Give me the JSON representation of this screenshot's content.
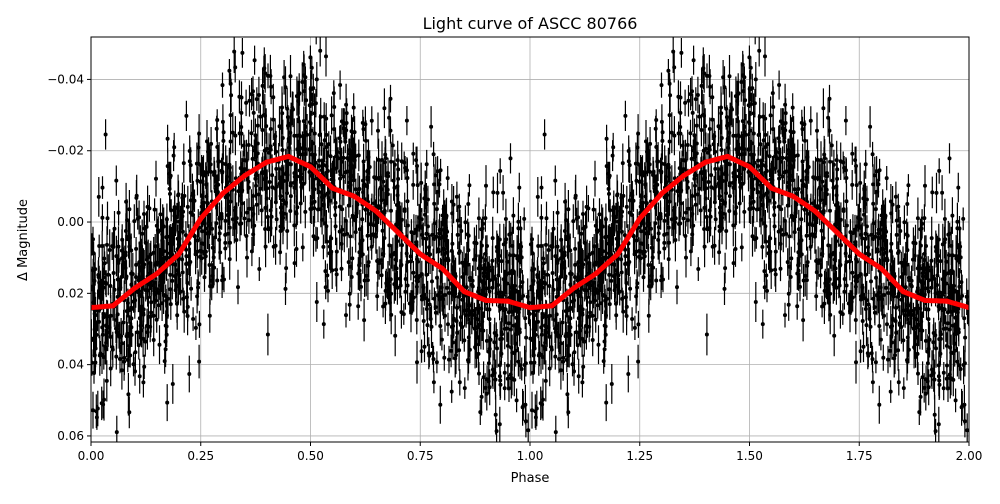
{
  "chart_data": {
    "type": "scatter",
    "title": "Light curve of ASCC 80766",
    "xlabel": "Phase",
    "ylabel": "Δ Magnitude",
    "xlim": [
      0.0,
      2.0
    ],
    "ylim": [
      0.0617,
      -0.0519
    ],
    "y_inverted": true,
    "grid": true,
    "xticks": [
      "0.00",
      "0.25",
      "0.50",
      "0.75",
      "1.00",
      "1.25",
      "1.50",
      "1.75",
      "2.00"
    ],
    "xtick_values": [
      0,
      0.25,
      0.5,
      0.75,
      1.0,
      1.25,
      1.5,
      1.75,
      2.0
    ],
    "yticks": [
      "−0.04",
      "−0.02",
      "0.00",
      "0.02",
      "0.04",
      "0.06"
    ],
    "ytick_values": [
      -0.04,
      -0.02,
      0.0,
      0.02,
      0.04,
      0.06
    ],
    "series": [
      {
        "kind": "errorbar-scatter",
        "color": "#000000",
        "description_of_spread": "dense points with error bars scattered around the binned curve, roughly ±0.03 mag"
      },
      {
        "kind": "binned-mean-line",
        "color": "#ff0000",
        "x": [
          0,
          0.05,
          0.1,
          0.15,
          0.2,
          0.25,
          0.3,
          0.35,
          0.4,
          0.45,
          0.5,
          0.55,
          0.6,
          0.65,
          0.7,
          0.75,
          0.8,
          0.85,
          0.9,
          0.95,
          1.0,
          1.05,
          1.1,
          1.15,
          1.2,
          1.25,
          1.3,
          1.35,
          1.4,
          1.45,
          1.5,
          1.55,
          1.6,
          1.65,
          1.7,
          1.75,
          1.8,
          1.85,
          1.9,
          1.95,
          2.0
        ],
        "y": [
          0.024,
          0.0235,
          0.0185,
          0.0145,
          0.009,
          -0.001,
          -0.008,
          -0.013,
          -0.0168,
          -0.0184,
          -0.0155,
          -0.0095,
          -0.0072,
          -0.003,
          0.003,
          0.009,
          0.013,
          0.0195,
          0.022,
          0.0222,
          0.024,
          0.0235,
          0.0185,
          0.0145,
          0.009,
          -0.001,
          -0.008,
          -0.013,
          -0.0168,
          -0.0184,
          -0.0155,
          -0.0095,
          -0.0072,
          -0.003,
          0.003,
          0.009,
          0.013,
          0.0195,
          0.022,
          0.0222,
          0.024
        ]
      }
    ]
  }
}
